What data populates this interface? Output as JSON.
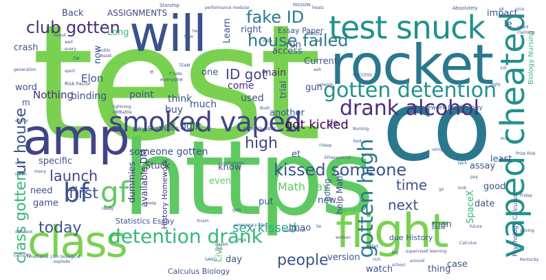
{
  "words": {
    "test": "test",
    "co": "co",
    "https": "https",
    "rocket": "rocket",
    "will": "will",
    "amp": "amp",
    "class": "class",
    "flight": "flight",
    "test_snuck": "test snuck",
    "smoked_vaped": "smoked vaped",
    "vaped_cheated": "vaped cheated",
    "gotten_detention": "gotten detention",
    "drank_alcohol": "drank alcohol",
    "detention_drank": "detention drank",
    "gf": "gf",
    "bf": "bf",
    "kissed_someone": "kissed someone",
    "gotten_high": "gotten high",
    "fake_id": "fake ID",
    "club_gotten": "club gotten",
    "house_failed": "house failed",
    "ur_house": "ur house",
    "class_gotten": "class gotten",
    "people": "people",
    "sex_kissed": "sex kissed",
    "today": "today",
    "first": "first",
    "launch": "launch",
    "high": "high",
    "got_kicked": "got kicked",
    "math_pay": "Math pay",
    "next": "next",
    "time": "time",
    "id_got": "ID got",
    "elon": "Elon",
    "nothing": "Nothing",
    "binding": "binding",
    "point": "point",
    "think": "think",
    "much": "much",
    "buy": "buy",
    "come": "come",
    "main": "main",
    "used": "used",
    "built": "built",
    "someone_gotten": "someone gotten",
    "stuck": "Stuck",
    "available_dm": "available DM",
    "specific": "specific",
    "need": "need",
    "game": "game",
    "dummies": "dummies",
    "know": "know",
    "even": "even",
    "put": "put",
    "new": "new",
    "lmao": "lmao",
    "day": "day",
    "live": "Live",
    "version": "version",
    "watch": "watch",
    "case": "case",
    "thing": "thing",
    "man": "man",
    "date": "date",
    "good": "good",
    "least": "least",
    "assay": "assay",
    "spacex": "SpaceX",
    "gotten_high_small": "gotten high",
    "going": "going",
    "help_math": "help Math",
    "de": "de",
    "et": "et",
    "another": "another",
    "trial": "trial",
    "gun": "gun",
    "access": "access",
    "current": "Current",
    "run": "run",
    "impact": "impact",
    "le": "le",
    "biology_nursing": "Biology Nursing",
    "back": "Back",
    "assignments": "ASSIGNMENTS",
    "long": "Long",
    "now": "now",
    "right": "right",
    "learn": "Learn",
    "essay_paper": "Essay Paper",
    "crash": "crash",
    "word": "word",
    "one": "one",
    "m": "m",
    "history_homework": "History Homework",
    "statistics_essay": "Statistics Essay",
    "pay_statistics": "pay Statistics",
    "calculus_biology": "Calculus Biology",
    "due_history": "due History",
    "homework_psychology": "Homework Psychology",
    "psychology_calculus": "Psychology Calculus",
    "starship": "Starship",
    "performance_modular": "performance modular",
    "mission": "MISSION",
    "absolutely": "Absolutely",
    "risk_factor": "Risk Factor",
    "everyone": "everyone",
    "generation": "generation",
    "public": "public",
    "sport": "sport",
    "asset": "Asset",
    "equity": "equity",
    "emergency_alert": "emergency alert",
    "symptoms": "symptoms",
    "timeframe": "Timeframe 15m",
    "catturd2": "catturd2",
    "nursing": "Nursing",
    "success": "SUCCESS",
    "prize_risk": "Prize Risk",
    "network": "network",
    "bush": "Bush",
    "mattwallace": "MattWallace888",
    "data": "data",
    "idiots": "idiots",
    "friday": "Friday",
    "kentucky": "Kentucky",
    "driving": "driving",
    "future": "future",
    "years": "years",
    "claiming": "claiming",
    "ready": "ready",
    "different": "different",
    "biological": "biological",
    "explode": "explode",
    "pca": "PCA",
    "wallet": "wallet",
    "rich": "rich",
    "big": "big",
    "woman": "woman",
    "school": "school",
    "go": "go",
    "around": "around",
    "look": "look",
    "please": "please",
    "supervised_learning": "supervised learning",
    "work": "work",
    "mean": "mean",
    "ethereum": "Ethereum L2",
    "lightning": "lightning",
    "dmbattle": "DMBattle",
    "help": "help",
    "take": "take",
    "team": "TEAM",
    "fyp": "FYP",
    "based": "based",
    "keep": "keep",
    "sand": "SAND",
    "early_level": "early level",
    "calculus": "Calculus",
    "using": "using",
    "buyuk": "buyuk",
    "well": "well",
    "every": "every",
    "ifi": "Ifi",
    "tw": "TW",
    "p_side": "P Side",
    "aah": "aah",
    "fight": "fight",
    "pay": "pay",
    "tech": "tech",
    "kill": "kill",
    "many": "many",
    "heats": "heats",
    "cheap": "cheap",
    "art": "art",
    "bad": "bad",
    "lie": "lie",
    "gala": "gala",
    "ihram": "ihram",
    "eco": "eco",
    "nice": "nice",
    "ok": "ok"
  }
}
